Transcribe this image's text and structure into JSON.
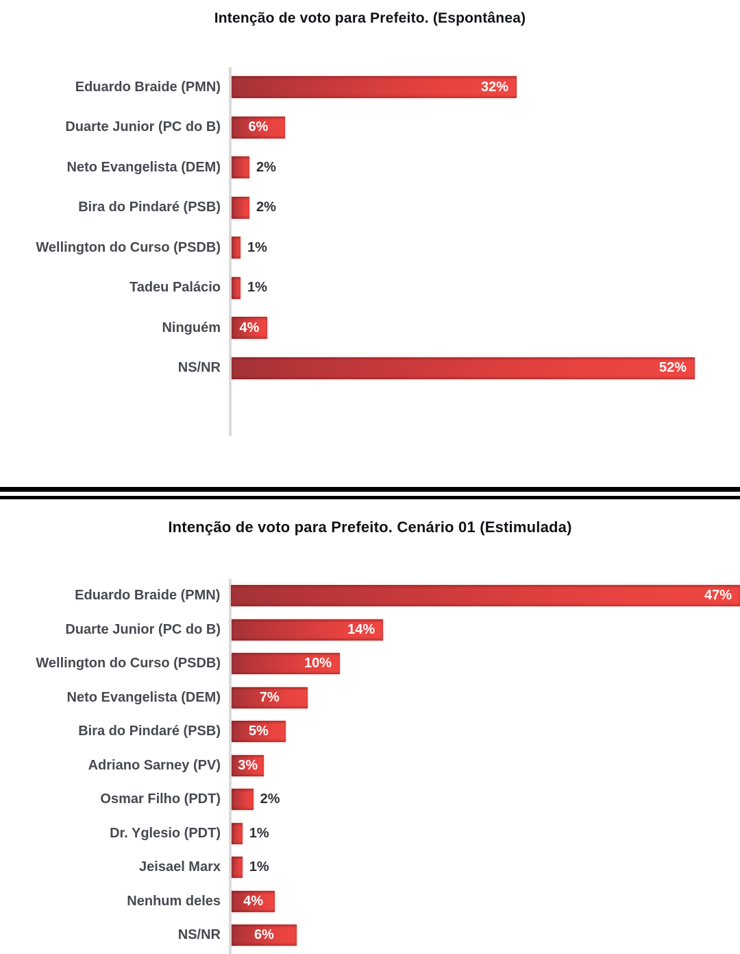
{
  "colors": {
    "bar_gradient_start": "#a23237",
    "bar_gradient_mid": "#d23c3c",
    "bar_gradient_end": "#ef4742",
    "value_label_inside": "#ffffff",
    "value_label_outside": "#2f3136",
    "category_label": "#46494f",
    "title_text": "#101215",
    "axis_line": "#dbdbdb",
    "divider_line": "#000000",
    "background": "#ffffff"
  },
  "chart_data": [
    {
      "type": "bar",
      "orientation": "horizontal",
      "title": "Intenção de voto para Prefeito. (Espontânea)",
      "categories": [
        "Eduardo Braide (PMN)",
        "Duarte Junior (PC do B)",
        "Neto Evangelista (DEM)",
        "Bira do Pindaré (PSB)",
        "Wellington do Curso (PSDB)",
        "Tadeu Palácio",
        "Ninguém",
        "NS/NR"
      ],
      "values": [
        32,
        6,
        2,
        2,
        1,
        1,
        4,
        52
      ],
      "value_labels": [
        "32%",
        "6%",
        "2%",
        "2%",
        "1%",
        "1%",
        "4%",
        "52%"
      ],
      "xlabel": "",
      "ylabel": "",
      "xlim": [
        0,
        57
      ],
      "grid": false,
      "legend": false
    },
    {
      "type": "bar",
      "orientation": "horizontal",
      "title": "Intenção de voto para Prefeito. Cenário 01 (Estimulada)",
      "categories": [
        "Eduardo Braide (PMN)",
        "Duarte Junior (PC do B)",
        "Wellington do Curso (PSDB)",
        "Neto Evangelista (DEM)",
        "Bira do Pindaré (PSB)",
        "Adriano Sarney (PV)",
        "Osmar Filho (PDT)",
        "Dr. Yglesio (PDT)",
        "Jeisael Marx",
        "Nenhum deles",
        "NS/NR"
      ],
      "values": [
        47,
        14,
        10,
        7,
        5,
        3,
        2,
        1,
        1,
        4,
        6
      ],
      "value_labels": [
        "47%",
        "14%",
        "10%",
        "7%",
        "5%",
        "3%",
        "2%",
        "1%",
        "1%",
        "4%",
        "6%"
      ],
      "xlabel": "",
      "ylabel": "",
      "xlim": [
        0,
        47
      ],
      "grid": false,
      "legend": false
    }
  ]
}
